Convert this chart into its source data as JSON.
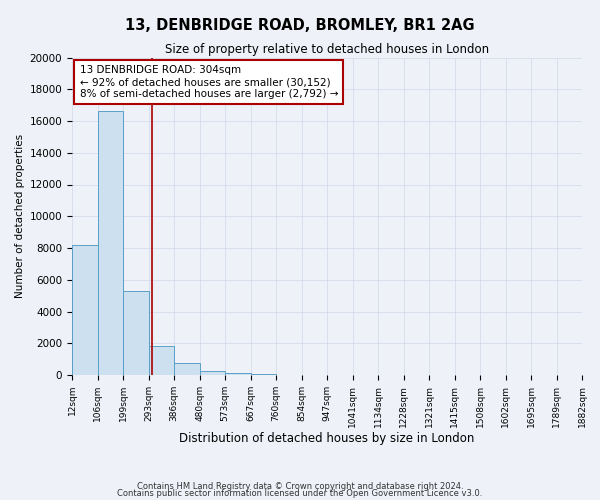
{
  "title": "13, DENBRIDGE ROAD, BROMLEY, BR1 2AG",
  "subtitle": "Size of property relative to detached houses in London",
  "xlabel": "Distribution of detached houses by size in London",
  "ylabel": "Number of detached properties",
  "bin_edges": [
    12,
    106,
    199,
    293,
    386,
    480,
    573,
    667,
    760,
    854,
    947,
    1041,
    1134,
    1228,
    1321,
    1415,
    1508,
    1602,
    1695,
    1789,
    1882
  ],
  "bin_counts": [
    8200,
    16600,
    5300,
    1800,
    750,
    270,
    120,
    50,
    20,
    8,
    3,
    1,
    1,
    0,
    0,
    0,
    0,
    0,
    0,
    0
  ],
  "bar_facecolor": "#cce0f0",
  "bar_edgecolor": "#5a9fc8",
  "property_line_x": 304,
  "property_line_color": "#aa0000",
  "annotation_title": "13 DENBRIDGE ROAD: 304sqm",
  "annotation_line1": "← 92% of detached houses are smaller (30,152)",
  "annotation_line2": "8% of semi-detached houses are larger (2,792) →",
  "annotation_box_color": "#aa0000",
  "annotation_fill": "#ffffff",
  "ylim": [
    0,
    20000
  ],
  "yticks": [
    0,
    2000,
    4000,
    6000,
    8000,
    10000,
    12000,
    14000,
    16000,
    18000,
    20000
  ],
  "grid_color": "#d0d8e8",
  "bg_color": "#eef2f8",
  "footnote1": "Contains HM Land Registry data © Crown copyright and database right 2024.",
  "footnote2": "Contains public sector information licensed under the Open Government Licence v3.0."
}
